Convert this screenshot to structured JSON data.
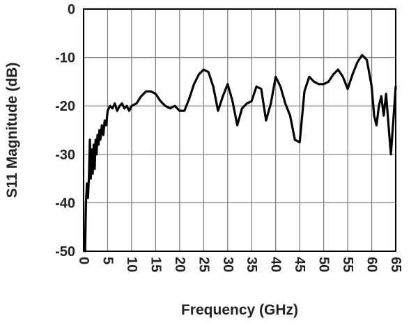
{
  "chart_data": {
    "type": "line",
    "title": "",
    "xlabel": "Frequency (GHz)",
    "ylabel": "S11 Magnitude (dB)",
    "xlim": [
      0,
      65
    ],
    "ylim": [
      -50,
      0
    ],
    "x_ticks": [
      0,
      5,
      10,
      15,
      20,
      25,
      30,
      35,
      40,
      45,
      50,
      55,
      60,
      65
    ],
    "y_ticks": [
      0,
      -10,
      -20,
      -30,
      -40,
      -50
    ],
    "grid": true,
    "legend": "none",
    "series": [
      {
        "color": "#000000",
        "x": [
          0.3,
          0.5,
          0.7,
          0.9,
          1.1,
          1.3,
          1.5,
          1.7,
          1.9,
          2.1,
          2.3,
          2.5,
          2.7,
          2.9,
          3.1,
          3.3,
          3.5,
          3.8,
          4.1,
          4.4,
          4.7,
          5.0,
          5.5,
          6.0,
          6.5,
          7.0,
          7.5,
          8.0,
          8.5,
          9.0,
          9.5,
          10.0,
          11.0,
          12.0,
          13.0,
          14.0,
          15.0,
          16.0,
          17.0,
          18.0,
          19.0,
          20.0,
          21.0,
          22.0,
          23.0,
          24.0,
          25.0,
          26.0,
          27.0,
          28.0,
          29.0,
          30.0,
          31.0,
          32.0,
          33.0,
          34.0,
          35.0,
          36.0,
          37.0,
          38.0,
          39.0,
          40.0,
          41.0,
          42.0,
          43.0,
          44.0,
          45.0,
          46.0,
          47.0,
          48.0,
          49.0,
          50.0,
          51.0,
          52.0,
          53.0,
          54.0,
          55.0,
          56.0,
          57.0,
          58.0,
          59.0,
          60.0,
          60.5,
          61.0,
          61.5,
          62.0,
          62.5,
          63.0,
          63.5,
          64.0,
          64.5,
          65.0
        ],
        "y": [
          -50.0,
          -40.0,
          -36.0,
          -39.0,
          -35.0,
          -27.0,
          -35.0,
          -29.0,
          -34.0,
          -28.0,
          -33.0,
          -27.0,
          -30.0,
          -26.0,
          -28.0,
          -25.0,
          -27.0,
          -24.0,
          -26.0,
          -23.0,
          -24.0,
          -21.0,
          -20.0,
          -20.5,
          -19.5,
          -21.0,
          -20.0,
          -19.5,
          -20.5,
          -20.0,
          -21.0,
          -20.0,
          -19.5,
          -18.0,
          -17.0,
          -17.0,
          -17.5,
          -19.0,
          -20.0,
          -20.5,
          -20.0,
          -21.0,
          -21.0,
          -18.5,
          -15.5,
          -13.5,
          -12.5,
          -13.0,
          -16.0,
          -21.0,
          -18.0,
          -15.5,
          -19.0,
          -24.0,
          -20.5,
          -19.5,
          -19.0,
          -16.0,
          -16.5,
          -23.0,
          -19.5,
          -14.0,
          -16.0,
          -19.5,
          -22.0,
          -27.0,
          -27.5,
          -17.0,
          -14.0,
          -15.0,
          -15.5,
          -15.5,
          -15.0,
          -13.5,
          -12.5,
          -14.0,
          -16.5,
          -13.5,
          -11.0,
          -9.5,
          -10.5,
          -16.0,
          -22.0,
          -24.0,
          -20.0,
          -18.0,
          -22.0,
          -17.5,
          -24.0,
          -30.0,
          -23.0,
          -16.0
        ]
      }
    ]
  }
}
